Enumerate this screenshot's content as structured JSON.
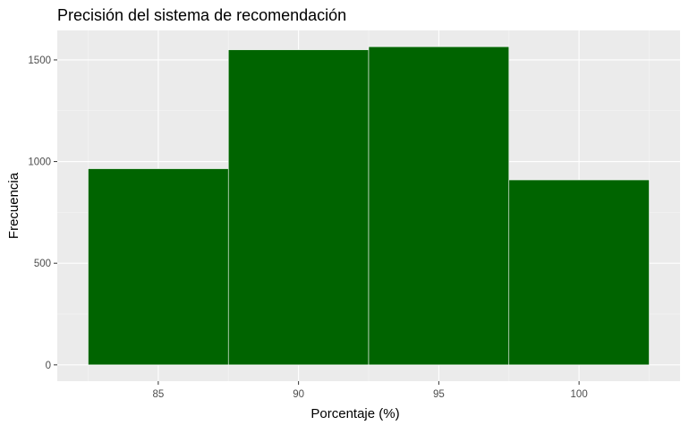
{
  "chart_data": {
    "type": "bar",
    "title": "Precisión del sistema de recomendación",
    "xlabel": "Porcentaje (%)",
    "ylabel": "Frecuencia",
    "bins": [
      {
        "from": 82.5,
        "to": 87.5,
        "value": 965
      },
      {
        "from": 87.5,
        "to": 92.5,
        "value": 1550
      },
      {
        "from": 92.5,
        "to": 97.5,
        "value": 1565
      },
      {
        "from": 97.5,
        "to": 102.5,
        "value": 910
      }
    ],
    "x_ticks": [
      85,
      90,
      95,
      100
    ],
    "y_ticks": [
      0,
      500,
      1000,
      1500
    ],
    "xlim": [
      81.4,
      103.6
    ],
    "ylim": [
      -80,
      1645
    ],
    "grid": true,
    "legend": "none",
    "colors": {
      "bar_fill": "#006400",
      "bar_stroke": "#ffffff",
      "panel_background": "#ebebeb",
      "grid_major": "#ffffff",
      "grid_minor": "#f5f5f5"
    }
  }
}
